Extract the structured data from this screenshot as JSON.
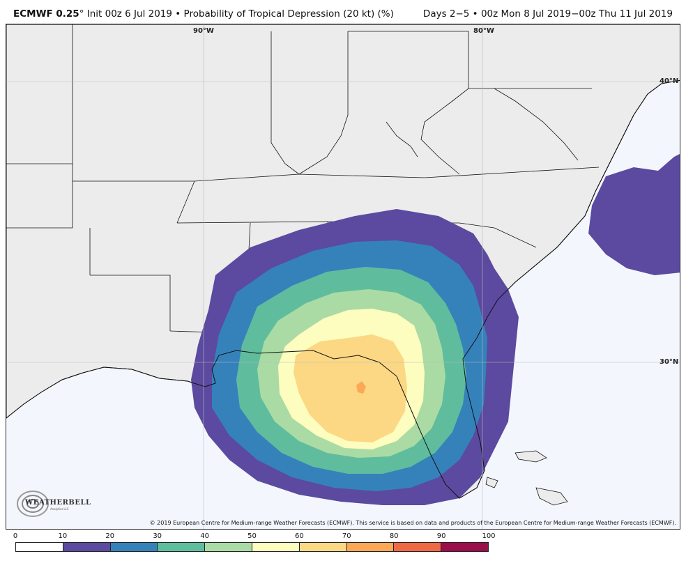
{
  "header": {
    "model": "ECMWF 0.25",
    "degree": "°",
    "init": "Init 00z 6 Jul 2019",
    "bullet": "•",
    "product": "Probability of Tropical Depression (20 kt) (%)",
    "valid": "Days 2−5 • 00z Mon 8 Jul 2019−00z Thu 11 Jul 2019"
  },
  "map": {
    "lon_labels": [
      "90°W",
      "80°W"
    ],
    "lat_labels": [
      "40°N",
      "30°N"
    ],
    "land_color": "#ececec",
    "ocean_color": "#f3f7fd"
  },
  "logo": {
    "text": "WEATHERBELL",
    "sub": "Analytics LLC",
    "icon": "swirl-logo-icon"
  },
  "copyright": "© 2019 European Centre for Medium-range Weather Forecasts (ECMWF). This service is based on data and products of the European Centre for Medium-range Weather Forecasts (ECMWF).",
  "colorbar": {
    "ticks": [
      "0",
      "10",
      "20",
      "30",
      "40",
      "50",
      "60",
      "70",
      "80",
      "90",
      "100"
    ],
    "colors": [
      "#ffffff",
      "#5b4a9f",
      "#3582bb",
      "#5fbd9e",
      "#abdba4",
      "#fdfdbf",
      "#fcd884",
      "#fba957",
      "#ef6945",
      "#9b0e4a"
    ]
  }
}
